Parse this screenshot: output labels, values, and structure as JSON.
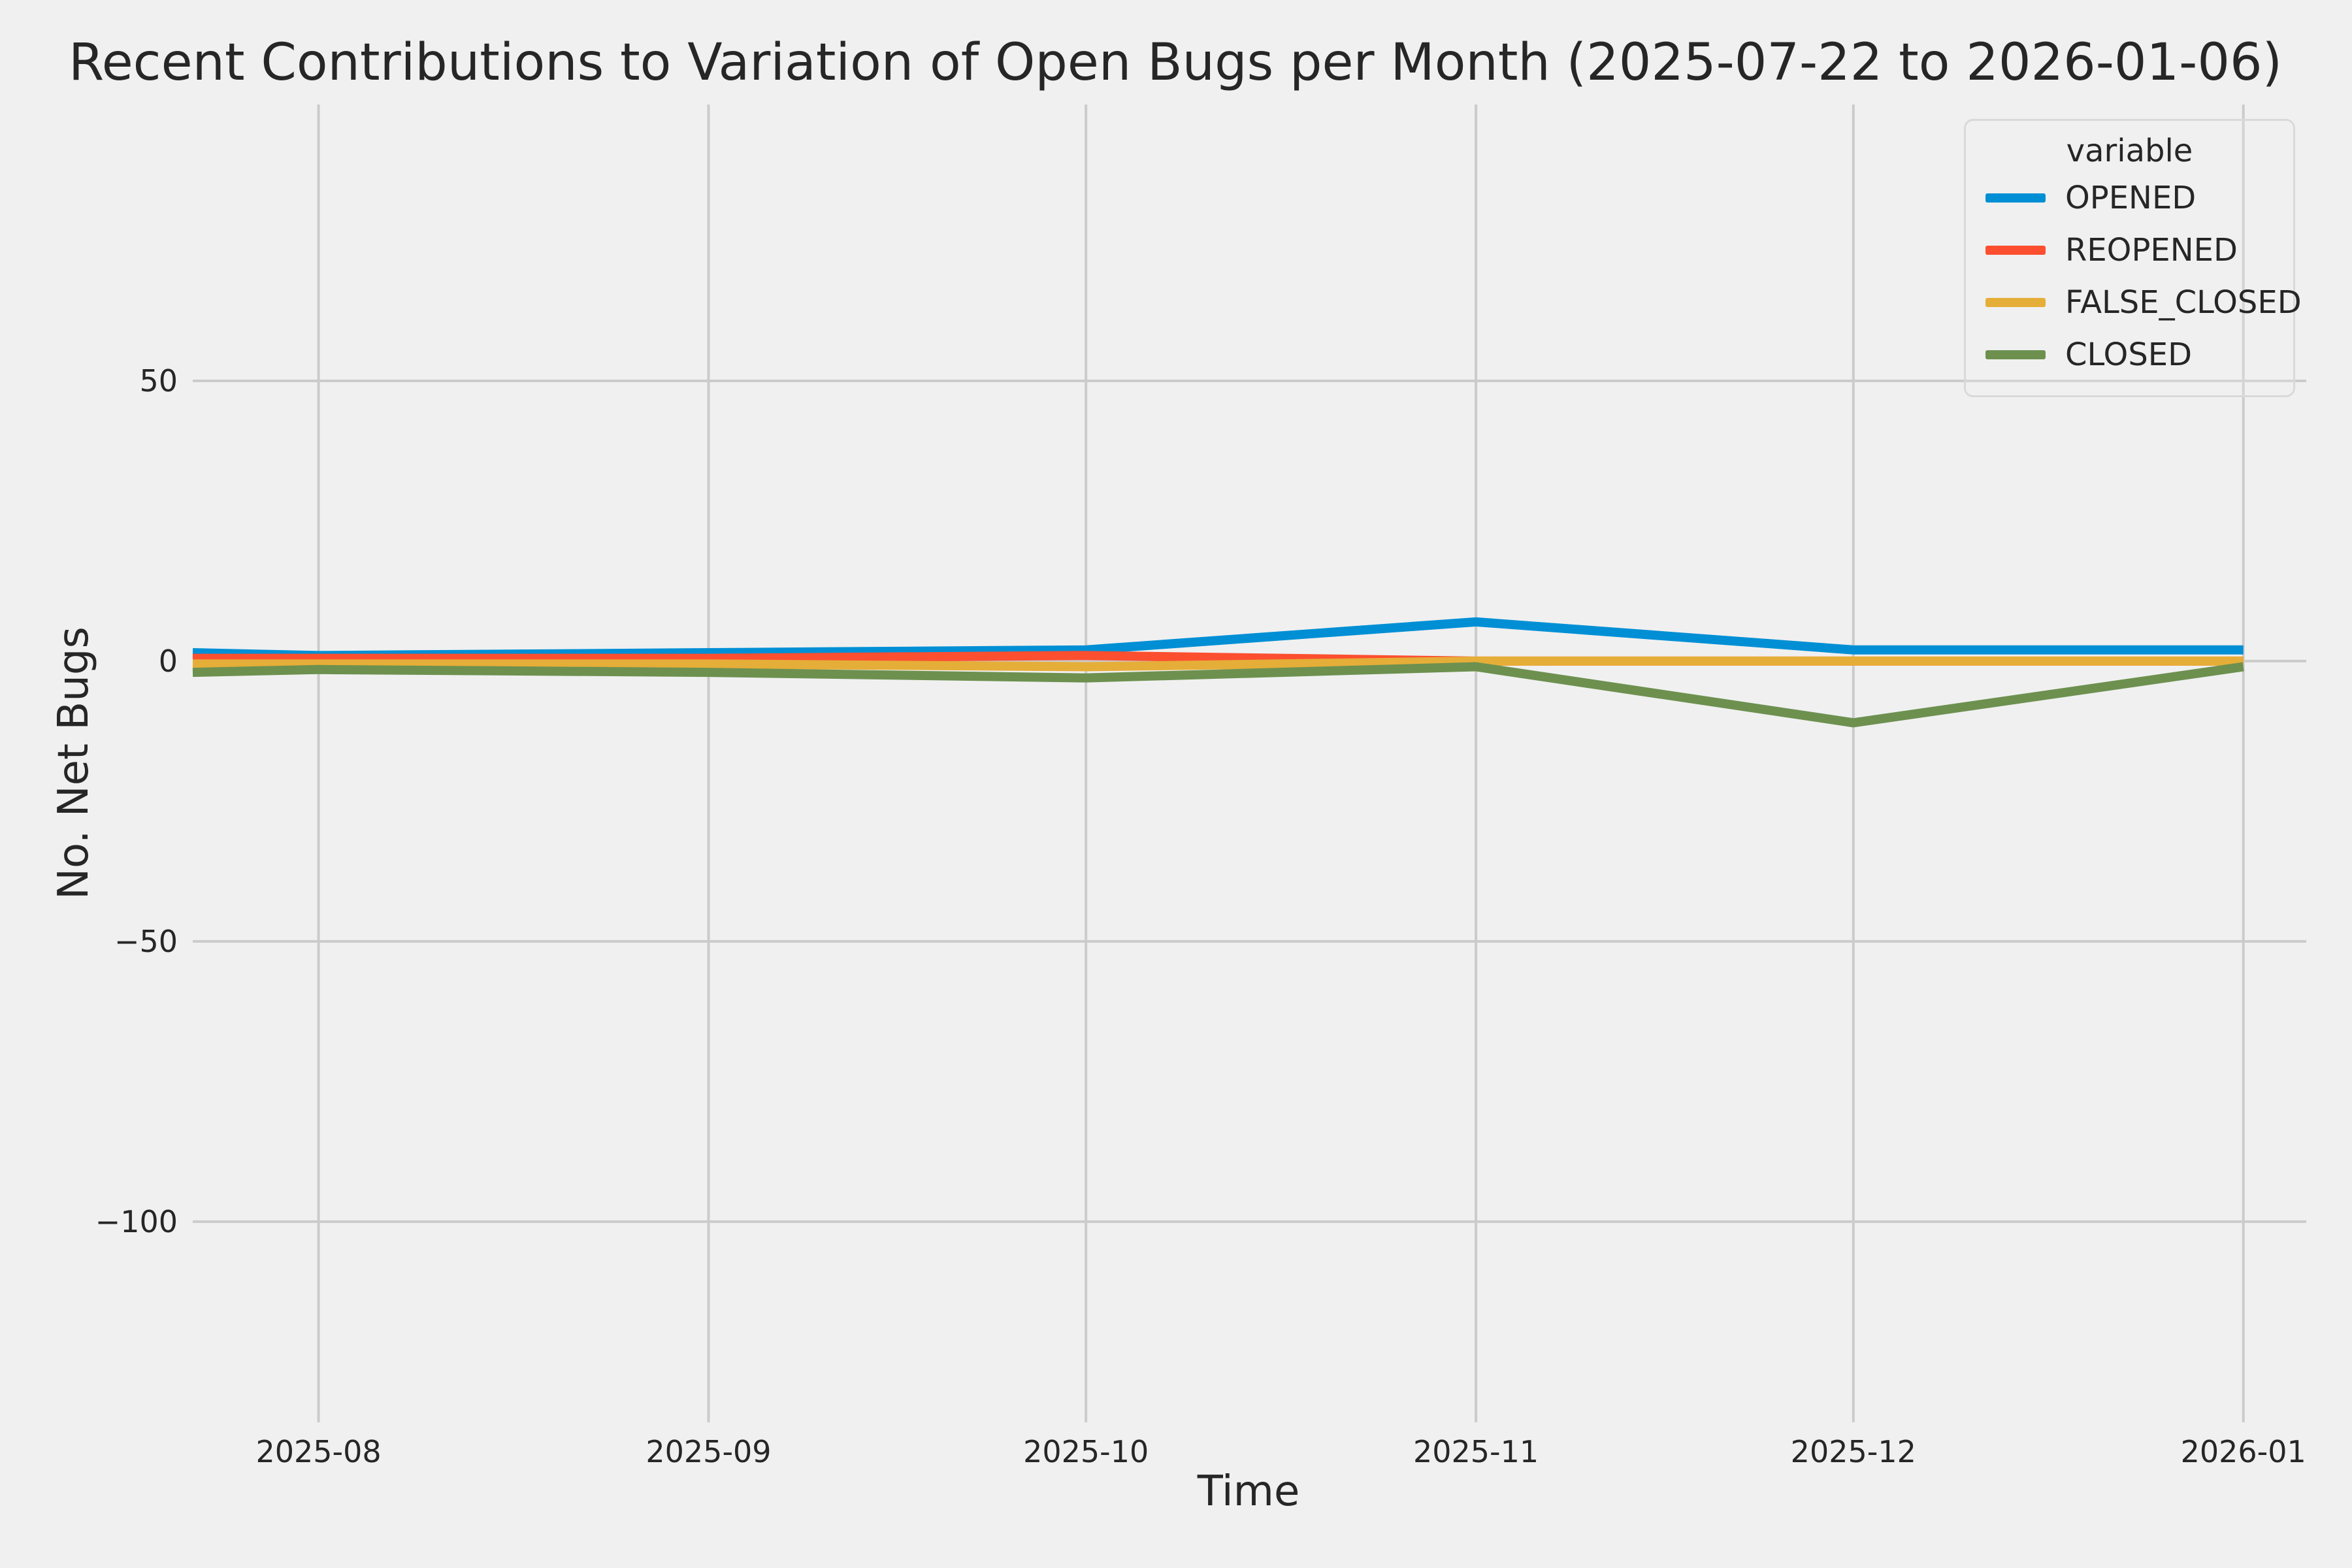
{
  "figure": {
    "background_color": "#f0f0f0",
    "grid_color": "#cbcbcb",
    "text_color": "#262626"
  },
  "chart_data": {
    "type": "line",
    "title": "Recent Contributions to Variation of Open Bugs per Month (2025-07-22 to 2026-01-06)",
    "xlabel": "Time",
    "ylabel": "No. Net Bugs",
    "grid": true,
    "legend": {
      "title": "variable",
      "position": "upper right"
    },
    "x_range": [
      "2025-07-22",
      "2026-01-06"
    ],
    "ylim": [
      -135.8,
      99.3
    ],
    "y_ticks": [
      {
        "label": "50",
        "value": 50
      },
      {
        "label": "0",
        "value": 0
      },
      {
        "label": "−50",
        "value": -50
      },
      {
        "label": "−100",
        "value": -100
      }
    ],
    "x_ticks": [
      {
        "label": "2025-08",
        "date": "2025-08-01"
      },
      {
        "label": "2025-09",
        "date": "2025-09-01"
      },
      {
        "label": "2025-10",
        "date": "2025-10-01"
      },
      {
        "label": "2025-11",
        "date": "2025-11-01"
      },
      {
        "label": "2025-12",
        "date": "2025-12-01"
      },
      {
        "label": "2026-01",
        "date": "2026-01-01"
      }
    ],
    "x_dates": [
      "2025-07-22",
      "2025-08-01",
      "2025-09-01",
      "2025-10-01",
      "2025-11-01",
      "2025-12-01",
      "2026-01-01"
    ],
    "series": [
      {
        "name": "OPENED",
        "color": "#008fd5",
        "values": [
          1.5,
          1,
          1.5,
          2,
          7,
          2,
          2
        ]
      },
      {
        "name": "REOPENED",
        "color": "#fc4f30",
        "values": [
          0.5,
          0.5,
          0.5,
          1,
          0,
          0,
          0
        ]
      },
      {
        "name": "FALSE_CLOSED",
        "color": "#e5ae38",
        "values": [
          -0.5,
          -0.5,
          -0.5,
          -1,
          0,
          0,
          0
        ]
      },
      {
        "name": "CLOSED",
        "color": "#6d904f",
        "values": [
          -2,
          -1.5,
          -2,
          -3,
          -1,
          -11,
          -1
        ]
      }
    ]
  }
}
